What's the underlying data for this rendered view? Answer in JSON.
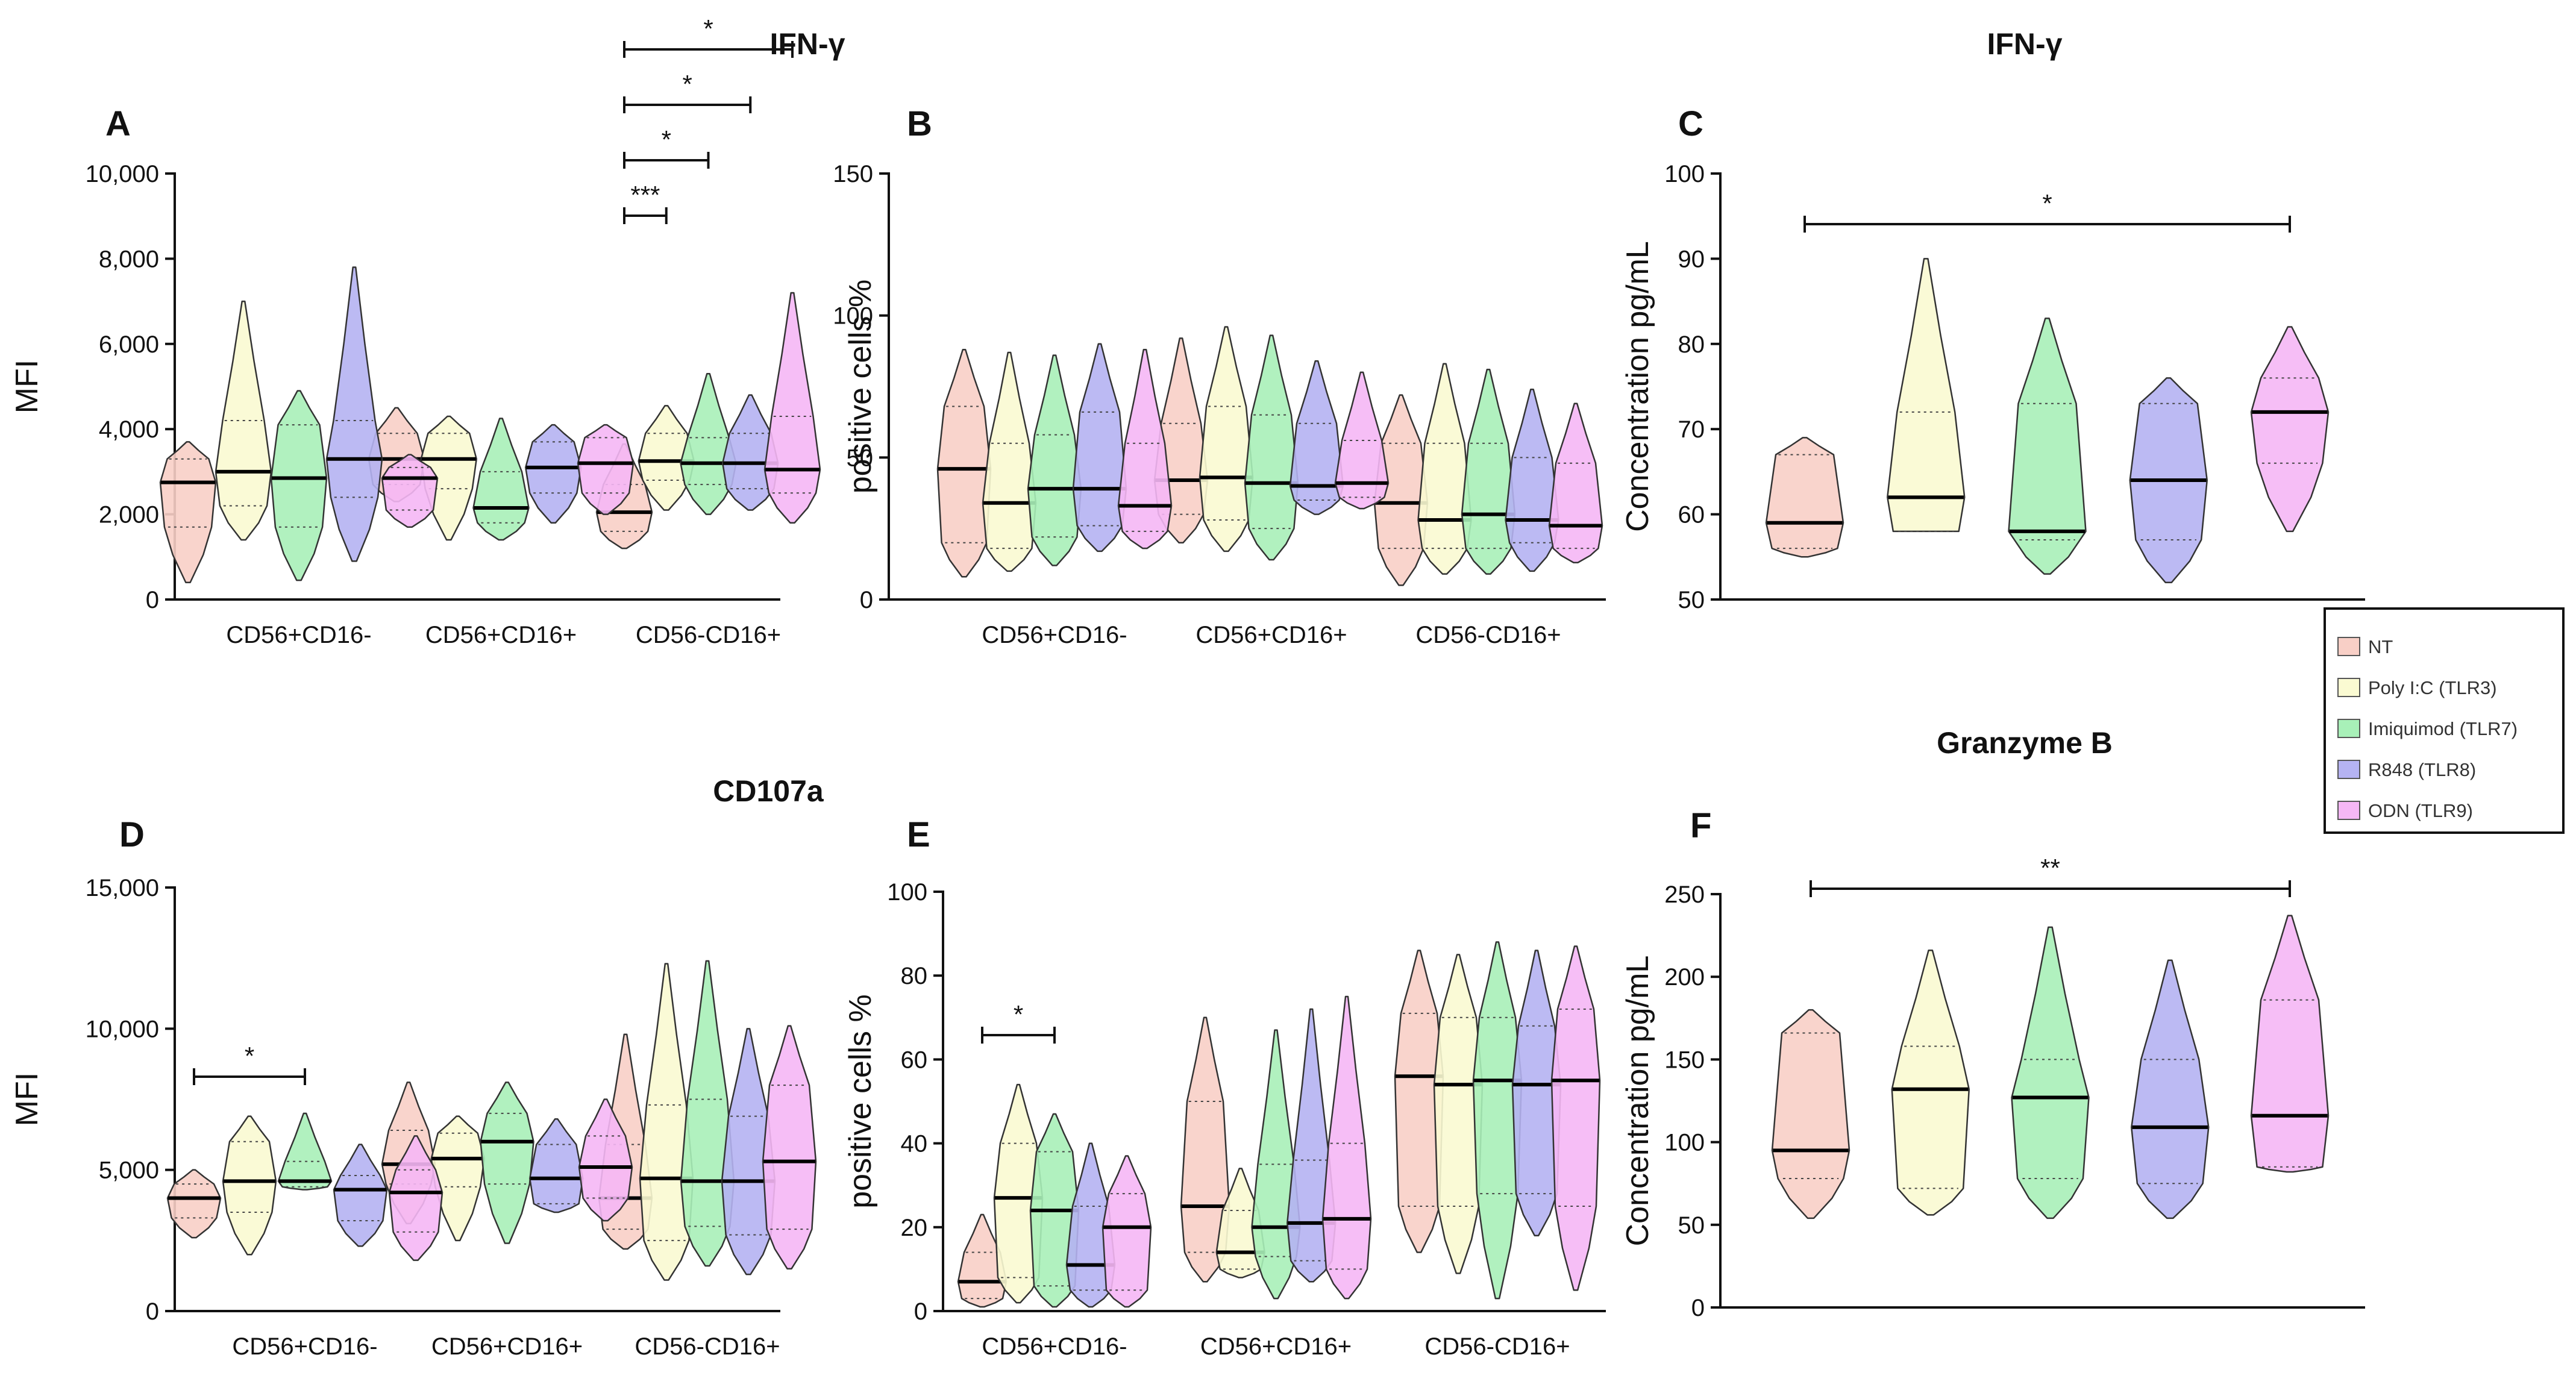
{
  "chart_data": [
    {
      "id": "A",
      "type": "violin",
      "title": "IFN-γ",
      "panel_label": "A",
      "ylabel": "MFI",
      "ylim": [
        0,
        10000
      ],
      "yticks": [
        "0",
        "2,000",
        "4,000",
        "6,000",
        "8,000",
        "10,000"
      ],
      "categories": [
        "CD56+CD16-",
        "CD56+CD16+",
        "CD56-CD16+"
      ],
      "series": [
        {
          "name": "NT",
          "values": [
            {
              "min": 400,
              "q1": 1700,
              "median": 2750,
              "q3": 3300,
              "max": 3700
            },
            {
              "min": 2300,
              "q1": 2700,
              "median": 3300,
              "q3": 3900,
              "max": 4500
            },
            {
              "min": 1200,
              "q1": 1600,
              "median": 2050,
              "q3": 2700,
              "max": 3650
            }
          ]
        },
        {
          "name": "Poly I:C (TLR3)",
          "values": [
            {
              "min": 1400,
              "q1": 2200,
              "median": 3000,
              "q3": 4200,
              "max": 7000
            },
            {
              "min": 1400,
              "q1": 2600,
              "median": 3300,
              "q3": 3900,
              "max": 4300
            },
            {
              "min": 2100,
              "q1": 2800,
              "median": 3250,
              "q3": 3900,
              "max": 4550
            }
          ]
        },
        {
          "name": "Imiquimod (TLR7)",
          "values": [
            {
              "min": 450,
              "q1": 1700,
              "median": 2850,
              "q3": 4100,
              "max": 4900
            },
            {
              "min": 1400,
              "q1": 1800,
              "median": 2150,
              "q3": 3000,
              "max": 4250
            },
            {
              "min": 2000,
              "q1": 2700,
              "median": 3200,
              "q3": 3800,
              "max": 5300
            }
          ]
        },
        {
          "name": "R848 (TLR8)",
          "values": [
            {
              "min": 900,
              "q1": 2400,
              "median": 3300,
              "q3": 4200,
              "max": 7800
            },
            {
              "min": 1800,
              "q1": 2500,
              "median": 3100,
              "q3": 3700,
              "max": 4100
            },
            {
              "min": 2100,
              "q1": 2600,
              "median": 3200,
              "q3": 3900,
              "max": 4800
            }
          ]
        },
        {
          "name": "ODN (TLR9)",
          "values": [
            {
              "min": 1700,
              "q1": 2100,
              "median": 2850,
              "q3": 3100,
              "max": 3400
            },
            {
              "min": 2000,
              "q1": 2500,
              "median": 3200,
              "q3": 3800,
              "max": 4100
            },
            {
              "min": 1800,
              "q1": 2500,
              "median": 3050,
              "q3": 4300,
              "max": 7200
            }
          ]
        }
      ],
      "significance": [
        {
          "group": 2,
          "from": 0,
          "to": 1,
          "label": "***"
        },
        {
          "group": 2,
          "from": 0,
          "to": 2,
          "label": "*"
        },
        {
          "group": 2,
          "from": 0,
          "to": 3,
          "label": "*"
        },
        {
          "group": 2,
          "from": 0,
          "to": 4,
          "label": "*"
        }
      ]
    },
    {
      "id": "B",
      "type": "violin",
      "title": "",
      "panel_label": "B",
      "ylabel": "positive cells %",
      "ylim": [
        0,
        150
      ],
      "yticks": [
        "0",
        "50",
        "100",
        "150"
      ],
      "categories": [
        "CD56+CD16-",
        "CD56+CD16+",
        "CD56-CD16+"
      ],
      "series": [
        {
          "name": "NT",
          "values": [
            {
              "min": 8,
              "q1": 20,
              "median": 46,
              "q3": 68,
              "max": 88
            },
            {
              "min": 20,
              "q1": 30,
              "median": 42,
              "q3": 62,
              "max": 92
            },
            {
              "min": 5,
              "q1": 18,
              "median": 34,
              "q3": 55,
              "max": 72
            }
          ]
        },
        {
          "name": "Poly I:C (TLR3)",
          "values": [
            {
              "min": 10,
              "q1": 18,
              "median": 34,
              "q3": 55,
              "max": 87
            },
            {
              "min": 17,
              "q1": 28,
              "median": 43,
              "q3": 68,
              "max": 96
            },
            {
              "min": 9,
              "q1": 18,
              "median": 28,
              "q3": 55,
              "max": 83
            }
          ]
        },
        {
          "name": "Imiquimod (TLR7)",
          "values": [
            {
              "min": 12,
              "q1": 22,
              "median": 39,
              "q3": 58,
              "max": 86
            },
            {
              "min": 14,
              "q1": 25,
              "median": 41,
              "q3": 65,
              "max": 93
            },
            {
              "min": 9,
              "q1": 18,
              "median": 30,
              "q3": 55,
              "max": 81
            }
          ]
        },
        {
          "name": "R848 (TLR8)",
          "values": [
            {
              "min": 17,
              "q1": 26,
              "median": 39,
              "q3": 66,
              "max": 90
            },
            {
              "min": 30,
              "q1": 35,
              "median": 40,
              "q3": 62,
              "max": 84
            },
            {
              "min": 10,
              "q1": 20,
              "median": 28,
              "q3": 50,
              "max": 74
            }
          ]
        },
        {
          "name": "ODN (TLR9)",
          "values": [
            {
              "min": 18,
              "q1": 24,
              "median": 33,
              "q3": 55,
              "max": 88
            },
            {
              "min": 32,
              "q1": 36,
              "median": 41,
              "q3": 56,
              "max": 80
            },
            {
              "min": 13,
              "q1": 18,
              "median": 26,
              "q3": 48,
              "max": 69
            }
          ]
        }
      ],
      "significance": []
    },
    {
      "id": "C",
      "type": "violin",
      "title": "IFN-γ",
      "panel_label": "C",
      "ylabel": "Concentration pg/mL",
      "ylim": [
        50,
        100
      ],
      "yticks": [
        "50",
        "60",
        "70",
        "80",
        "90",
        "100"
      ],
      "categories": [],
      "series": [
        {
          "name": "NT",
          "values": [
            {
              "min": 55,
              "q1": 56,
              "median": 59,
              "q3": 67,
              "max": 69
            }
          ]
        },
        {
          "name": "Poly I:C (TLR3)",
          "values": [
            {
              "min": 58,
              "q1": 58,
              "median": 62,
              "q3": 72,
              "max": 90
            }
          ]
        },
        {
          "name": "Imiquimod (TLR7)",
          "values": [
            {
              "min": 53,
              "q1": 57,
              "median": 58,
              "q3": 73,
              "max": 83
            }
          ]
        },
        {
          "name": "R848 (TLR8)",
          "values": [
            {
              "min": 52,
              "q1": 57,
              "median": 64,
              "q3": 73,
              "max": 76
            }
          ]
        },
        {
          "name": "ODN (TLR9)",
          "values": [
            {
              "min": 58,
              "q1": 66,
              "median": 72,
              "q3": 76,
              "max": 82
            }
          ]
        }
      ],
      "significance": [
        {
          "group": 0,
          "from": 0,
          "to": 4,
          "label": "*"
        }
      ]
    },
    {
      "id": "D",
      "type": "violin",
      "title": "CD107a",
      "panel_label": "D",
      "ylabel": "MFI",
      "ylim": [
        0,
        15000
      ],
      "yticks": [
        "0",
        "5,000",
        "10,000",
        "15,000"
      ],
      "categories": [
        "CD56+CD16-",
        "CD56+CD16+",
        "CD56-CD16+"
      ],
      "series": [
        {
          "name": "NT",
          "values": [
            {
              "min": 2600,
              "q1": 3300,
              "median": 4000,
              "q3": 4500,
              "max": 5000
            },
            {
              "min": 3100,
              "q1": 4500,
              "median": 5200,
              "q3": 6400,
              "max": 8100
            },
            {
              "min": 2200,
              "q1": 2900,
              "median": 4000,
              "q3": 5900,
              "max": 9800
            }
          ]
        },
        {
          "name": "Poly I:C (TLR3)",
          "values": [
            {
              "min": 2000,
              "q1": 3500,
              "median": 4600,
              "q3": 6000,
              "max": 6900
            },
            {
              "min": 2500,
              "q1": 4400,
              "median": 5400,
              "q3": 6300,
              "max": 6900
            },
            {
              "min": 1100,
              "q1": 2500,
              "median": 4700,
              "q3": 7300,
              "max": 12300
            }
          ]
        },
        {
          "name": "Imiquimod (TLR7)",
          "values": [
            {
              "min": 4300,
              "q1": 4400,
              "median": 4600,
              "q3": 5300,
              "max": 7000
            },
            {
              "min": 2400,
              "q1": 4500,
              "median": 6000,
              "q3": 7000,
              "max": 8100
            },
            {
              "min": 1600,
              "q1": 3000,
              "median": 4600,
              "q3": 7500,
              "max": 12400
            }
          ]
        },
        {
          "name": "R848 (TLR8)",
          "values": [
            {
              "min": 2300,
              "q1": 3200,
              "median": 4300,
              "q3": 4800,
              "max": 5900
            },
            {
              "min": 3500,
              "q1": 3800,
              "median": 4700,
              "q3": 5900,
              "max": 6800
            },
            {
              "min": 1300,
              "q1": 2700,
              "median": 4600,
              "q3": 6900,
              "max": 10000
            }
          ]
        },
        {
          "name": "ODN (TLR9)",
          "values": [
            {
              "min": 1800,
              "q1": 2800,
              "median": 4200,
              "q3": 5000,
              "max": 6200
            },
            {
              "min": 3200,
              "q1": 4000,
              "median": 5100,
              "q3": 6200,
              "max": 7500
            },
            {
              "min": 1500,
              "q1": 2900,
              "median": 5300,
              "q3": 8000,
              "max": 10100
            }
          ]
        }
      ],
      "significance": [
        {
          "group": 0,
          "from": 0,
          "to": 2,
          "label": "*"
        }
      ]
    },
    {
      "id": "E",
      "type": "violin",
      "title": "",
      "panel_label": "E",
      "ylabel": "positive cells %",
      "ylim": [
        0,
        100
      ],
      "yticks": [
        "0",
        "20",
        "40",
        "60",
        "80",
        "100"
      ],
      "categories": [
        "CD56+CD16-",
        "CD56+CD16+",
        "CD56-CD16+"
      ],
      "series": [
        {
          "name": "NT",
          "values": [
            {
              "min": 1,
              "q1": 3,
              "median": 7,
              "q3": 14,
              "max": 23
            },
            {
              "min": 7,
              "q1": 14,
              "median": 25,
              "q3": 50,
              "max": 70
            },
            {
              "min": 14,
              "q1": 25,
              "median": 56,
              "q3": 71,
              "max": 86
            }
          ]
        },
        {
          "name": "Poly I:C (TLR3)",
          "values": [
            {
              "min": 2,
              "q1": 8,
              "median": 27,
              "q3": 40,
              "max": 54
            },
            {
              "min": 8,
              "q1": 10,
              "median": 14,
              "q3": 24,
              "max": 34
            },
            {
              "min": 9,
              "q1": 25,
              "median": 54,
              "q3": 70,
              "max": 85
            }
          ]
        },
        {
          "name": "Imiquimod (TLR7)",
          "values": [
            {
              "min": 1,
              "q1": 6,
              "median": 24,
              "q3": 38,
              "max": 47
            },
            {
              "min": 3,
              "q1": 13,
              "median": 20,
              "q3": 35,
              "max": 67
            },
            {
              "min": 3,
              "q1": 28,
              "median": 55,
              "q3": 70,
              "max": 88
            }
          ]
        },
        {
          "name": "R848 (TLR8)",
          "values": [
            {
              "min": 1,
              "q1": 5,
              "median": 11,
              "q3": 25,
              "max": 40
            },
            {
              "min": 7,
              "q1": 12,
              "median": 21,
              "q3": 36,
              "max": 72
            },
            {
              "min": 18,
              "q1": 28,
              "median": 54,
              "q3": 68,
              "max": 86
            }
          ]
        },
        {
          "name": "ODN (TLR9)",
          "values": [
            {
              "min": 1,
              "q1": 5,
              "median": 20,
              "q3": 28,
              "max": 37
            },
            {
              "min": 3,
              "q1": 10,
              "median": 22,
              "q3": 40,
              "max": 75
            },
            {
              "min": 5,
              "q1": 25,
              "median": 55,
              "q3": 72,
              "max": 87
            }
          ]
        }
      ],
      "significance": [
        {
          "group": 0,
          "from": 0,
          "to": 2,
          "label": "*"
        }
      ]
    },
    {
      "id": "F",
      "type": "violin",
      "title": "Granzyme B",
      "panel_label": "F",
      "ylabel": "Concentration pg/mL",
      "ylim": [
        0,
        250
      ],
      "yticks": [
        "0",
        "50",
        "100",
        "150",
        "200",
        "250"
      ],
      "categories": [],
      "series": [
        {
          "name": "NT",
          "values": [
            {
              "min": 54,
              "q1": 78,
              "median": 95,
              "q3": 166,
              "max": 180
            }
          ]
        },
        {
          "name": "Poly I:C (TLR3)",
          "values": [
            {
              "min": 56,
              "q1": 72,
              "median": 132,
              "q3": 158,
              "max": 216
            }
          ]
        },
        {
          "name": "Imiquimod (TLR7)",
          "values": [
            {
              "min": 54,
              "q1": 78,
              "median": 127,
              "q3": 150,
              "max": 230
            }
          ]
        },
        {
          "name": "R848 (TLR8)",
          "values": [
            {
              "min": 54,
              "q1": 75,
              "median": 109,
              "q3": 150,
              "max": 210
            }
          ]
        },
        {
          "name": "ODN (TLR9)",
          "values": [
            {
              "min": 82,
              "q1": 85,
              "median": 116,
              "q3": 186,
              "max": 237
            }
          ]
        }
      ],
      "significance": [
        {
          "group": 0,
          "from": 0,
          "to": 4,
          "label": "**"
        }
      ]
    }
  ],
  "legend": {
    "position": "right",
    "entries": [
      {
        "name": "NT",
        "color": "#f8cfc6"
      },
      {
        "name": "Poly I:C (TLR3)",
        "color": "#fafad2"
      },
      {
        "name": "Imiquimod (TLR7)",
        "color": "#a8f0b8"
      },
      {
        "name": "R848 (TLR8)",
        "color": "#b5b3f2"
      },
      {
        "name": "ODN (TLR9)",
        "color": "#f5b7f5"
      }
    ]
  },
  "colors": [
    "#f8cfc6",
    "#fafad2",
    "#a8f0b8",
    "#b5b3f2",
    "#f5b7f5"
  ]
}
